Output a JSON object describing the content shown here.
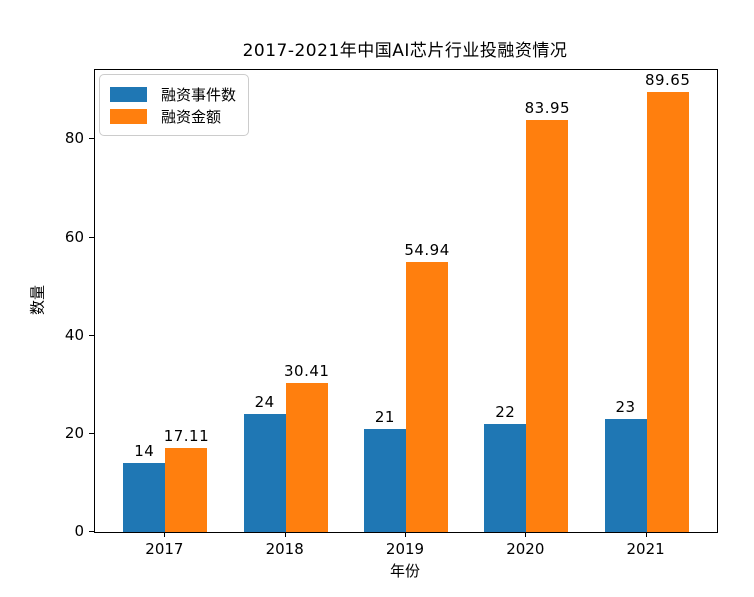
{
  "chart_data": {
    "type": "bar",
    "title": "2017-2021年中国AI芯片行业投融资情况",
    "xlabel": "年份",
    "ylabel": "数量",
    "categories": [
      "2017",
      "2018",
      "2019",
      "2020",
      "2021"
    ],
    "series": [
      {
        "name": "融资事件数",
        "color": "#1f77b4",
        "values": [
          14,
          24,
          21,
          22,
          23
        ],
        "labels": [
          "14",
          "24",
          "21",
          "22",
          "23"
        ]
      },
      {
        "name": "融资金额",
        "color": "#ff7f0e",
        "values": [
          17.11,
          30.41,
          54.94,
          83.95,
          89.65
        ],
        "labels": [
          "17.11",
          "30.41",
          "54.94",
          "83.95",
          "89.65"
        ]
      }
    ],
    "yticks": [
      0,
      20,
      40,
      60,
      80
    ],
    "ylim": [
      0,
      94.13
    ],
    "bar_width": 0.35,
    "grid": false,
    "legend_position": "upper-left",
    "background_color": "#ffffff",
    "axis_color": "#000000"
  }
}
